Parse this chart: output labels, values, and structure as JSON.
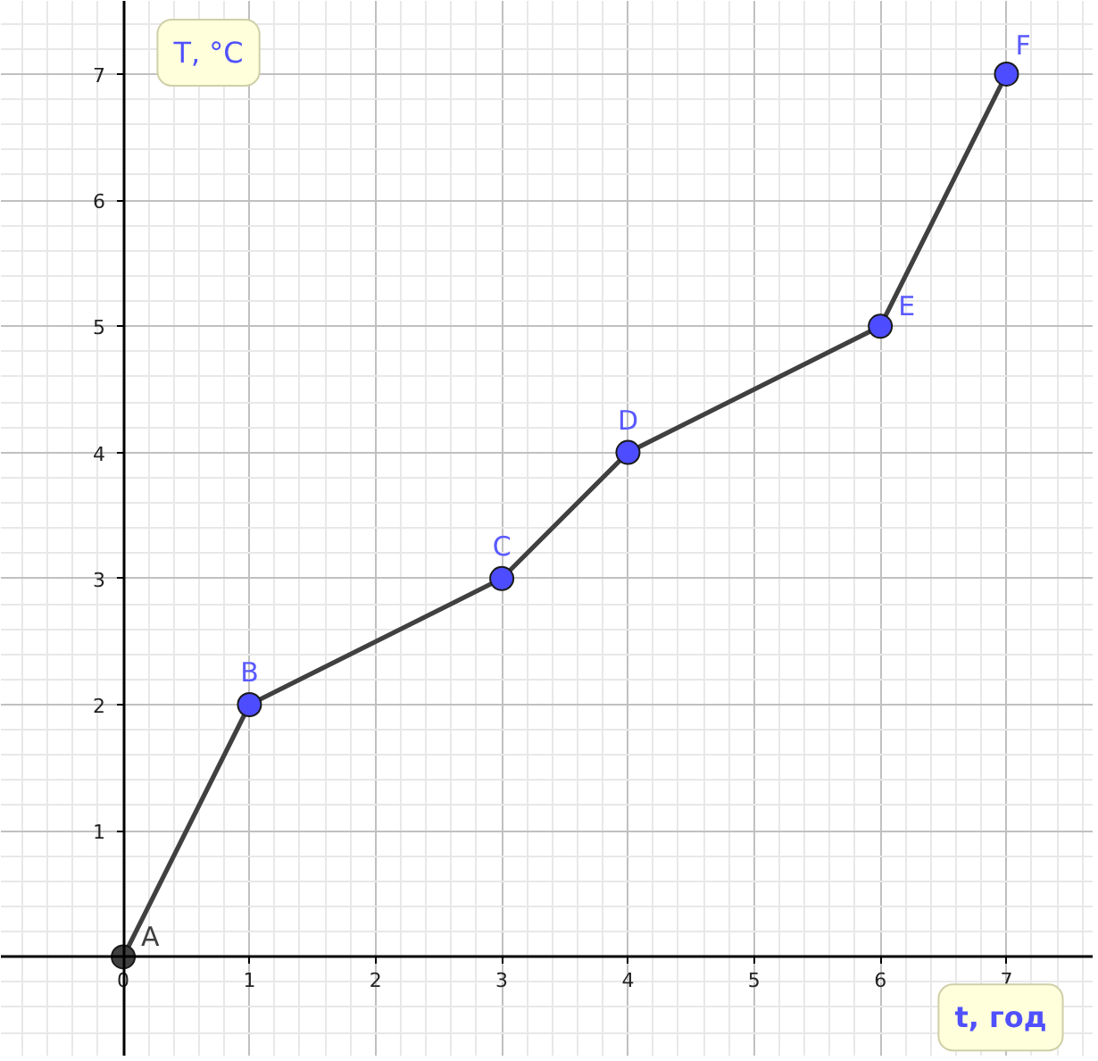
{
  "chart_data": {
    "type": "line",
    "xlabel": "t, год",
    "ylabel": "T, °C",
    "x": [
      0,
      1,
      3,
      4,
      6,
      7
    ],
    "series": [
      {
        "values": [
          0,
          2,
          3,
          4,
          5,
          7
        ],
        "color": "#404040",
        "colors": [
          "#404040",
          "#4d4dff",
          "#4d4dff",
          "#4d4dff",
          "#4d4dff",
          "#4d4dff"
        ]
      }
    ],
    "marker": "circle",
    "line_style": "solid",
    "grid": true,
    "xlim": [
      -0.97,
      7.69
    ],
    "ylim": [
      -0.79,
      7.58
    ],
    "xticks": [
      0,
      1,
      2,
      3,
      4,
      5,
      6,
      7
    ],
    "yticks": [
      1,
      2,
      3,
      4,
      5,
      6,
      7
    ],
    "annotations": [
      {
        "text": "A",
        "x": 0,
        "y": 0
      },
      {
        "text": "B",
        "x": 1,
        "y": 2
      },
      {
        "text": "C",
        "x": 3,
        "y": 3
      },
      {
        "text": "D",
        "x": 4,
        "y": 4
      },
      {
        "text": "E",
        "x": 6,
        "y": 5
      },
      {
        "text": "F",
        "x": 7,
        "y": 7
      }
    ]
  }
}
